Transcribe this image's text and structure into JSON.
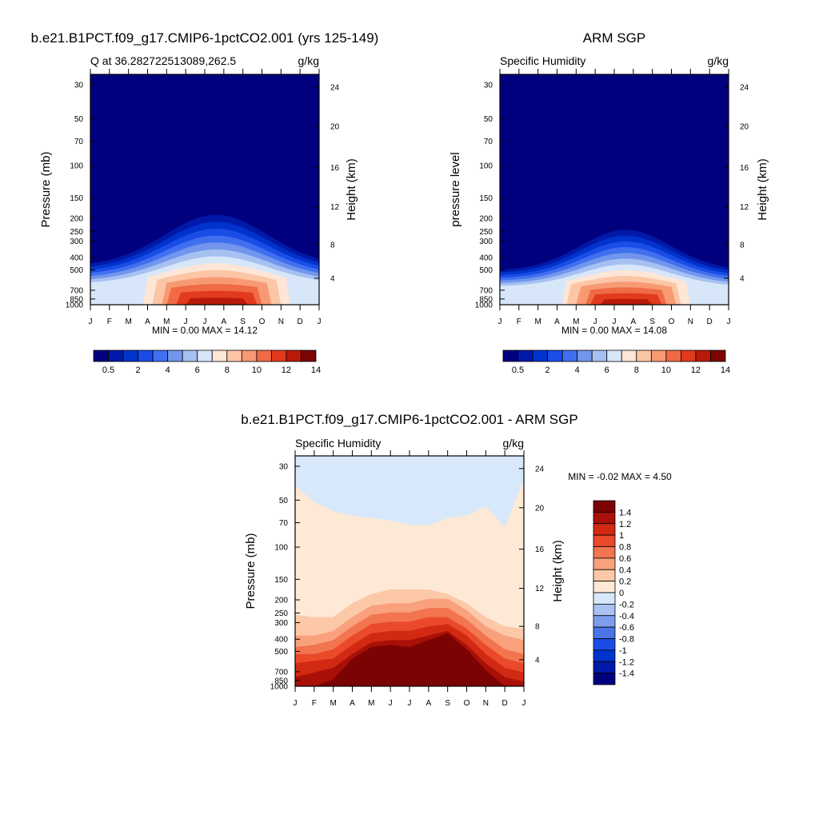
{
  "palette": {
    "levels14": [
      "#00007f",
      "#0019a8",
      "#0033cc",
      "#1a4de6",
      "#4070f0",
      "#7296ec",
      "#a6c1f1",
      "#d8e6fa",
      "#fde6d6",
      "#fcc5a6",
      "#f79a74",
      "#ef6a45",
      "#e23a1c",
      "#b81a0a",
      "#7a0403"
    ],
    "diff": [
      "#00007f",
      "#0019a8",
      "#0033cc",
      "#1a4de6",
      "#4a74e8",
      "#7e9eec",
      "#a9c2f2",
      "#d7e8fb",
      "#fde9d6",
      "#fcc8a8",
      "#f9a07c",
      "#f27550",
      "#ea4a2a",
      "#d22a12",
      "#a81008",
      "#7c0303"
    ]
  },
  "chart_data": [
    {
      "id": "model",
      "type": "contour",
      "title": "b.e21.B1PCT.f09_g17.CMIP6-1pctCO2.001 (yrs 125-149)",
      "subtitle_left": "Q at 36.282722513089,262.5",
      "subtitle_right": "g/kg",
      "ylabel": "Pressure (mb)",
      "ylabel_right": "Height (km)",
      "x_ticks": [
        "J",
        "F",
        "M",
        "A",
        "M",
        "J",
        "J",
        "A",
        "S",
        "O",
        "N",
        "D",
        "J"
      ],
      "pressure_ticks": [
        "30",
        "50",
        "70",
        "100",
        "150",
        "200",
        "250",
        "300",
        "400",
        "500",
        "700",
        "850",
        "1000"
      ],
      "height_ticks": [
        "24",
        "20",
        "16",
        "12",
        "8",
        "4"
      ],
      "min_max_text": "MIN =   0.00 MAX =  14.12",
      "colorbar_labels": [
        "0.5",
        "2",
        "4",
        "6",
        "8",
        "10",
        "12",
        "14"
      ],
      "min": 0.0,
      "max": 14.12
    },
    {
      "id": "obs",
      "type": "contour",
      "title": "ARM SGP",
      "subtitle_left": "Specific Humidity",
      "subtitle_right": "g/kg",
      "ylabel": "pressure level",
      "ylabel_right": "Height (km)",
      "x_ticks": [
        "J",
        "F",
        "M",
        "A",
        "M",
        "J",
        "J",
        "A",
        "S",
        "O",
        "N",
        "D",
        "J"
      ],
      "pressure_ticks": [
        "30",
        "50",
        "70",
        "100",
        "150",
        "200",
        "250",
        "300",
        "400",
        "500",
        "700",
        "850",
        "1000"
      ],
      "height_ticks": [
        "24",
        "20",
        "16",
        "12",
        "8",
        "4"
      ],
      "min_max_text": "MIN =   0.00 MAX =  14.08",
      "colorbar_labels": [
        "0.5",
        "2",
        "4",
        "6",
        "8",
        "10",
        "12",
        "14"
      ],
      "min": 0.0,
      "max": 14.08
    },
    {
      "id": "diff",
      "type": "contour",
      "title": "b.e21.B1PCT.f09_g17.CMIP6-1pctCO2.001 - ARM SGP",
      "subtitle_left": "Specific Humidity",
      "subtitle_right": "g/kg",
      "ylabel": "Pressure (mb)",
      "ylabel_right": "Height (km)",
      "x_ticks": [
        "J",
        "F",
        "M",
        "A",
        "M",
        "J",
        "J",
        "A",
        "S",
        "O",
        "N",
        "D",
        "J"
      ],
      "pressure_ticks": [
        "30",
        "50",
        "70",
        "100",
        "150",
        "200",
        "250",
        "300",
        "400",
        "500",
        "700",
        "850",
        "1000"
      ],
      "height_ticks": [
        "24",
        "20",
        "16",
        "12",
        "8",
        "4"
      ],
      "min_max_text": "MIN =  -0.02 MAX =   4.50",
      "colorbar_labels": [
        "1.4",
        "1.2",
        "1",
        "0.8",
        "0.6",
        "0.4",
        "0.2",
        "0",
        "-0.2",
        "-0.4",
        "-0.6",
        "-0.8",
        "-1",
        "-1.2",
        "-1.4"
      ],
      "min": -0.02,
      "max": 4.5
    }
  ]
}
